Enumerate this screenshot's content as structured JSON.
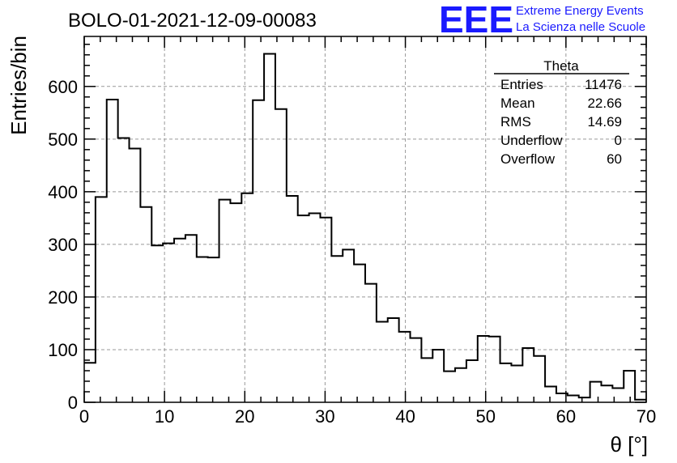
{
  "logo": {
    "mark": "EEE",
    "line1": "Extreme Energy Events",
    "line2": "La Scienza nelle Scuole",
    "color": "#1a1aff"
  },
  "chart_data": {
    "type": "histogram",
    "title": "BOLO-01-2021-12-09-00083",
    "xlabel": "θ [°]",
    "ylabel": "Entries/bin",
    "xlim": [
      0,
      70
    ],
    "ylim": [
      0,
      695
    ],
    "grid": true,
    "x_ticks": [
      0,
      10,
      20,
      30,
      40,
      50,
      60,
      70
    ],
    "y_ticks": [
      0,
      100,
      200,
      300,
      400,
      500,
      600
    ],
    "bin_width": 1.4,
    "values": [
      75,
      390,
      575,
      502,
      482,
      371,
      298,
      302,
      311,
      318,
      276,
      275,
      385,
      378,
      397,
      574,
      662,
      557,
      392,
      355,
      359,
      351,
      278,
      290,
      262,
      225,
      153,
      160,
      134,
      122,
      84,
      100,
      59,
      65,
      80,
      126,
      125,
      74,
      70,
      103,
      88,
      30,
      17,
      13,
      9,
      39,
      32,
      27,
      60,
      5
    ],
    "stats": {
      "name": "Theta",
      "rows": [
        {
          "label": "Entries",
          "value": "11476"
        },
        {
          "label": "Mean",
          "value": "22.66"
        },
        {
          "label": "RMS",
          "value": "14.69"
        },
        {
          "label": "Underflow",
          "value": "0"
        },
        {
          "label": "Overflow",
          "value": "60"
        }
      ]
    }
  }
}
